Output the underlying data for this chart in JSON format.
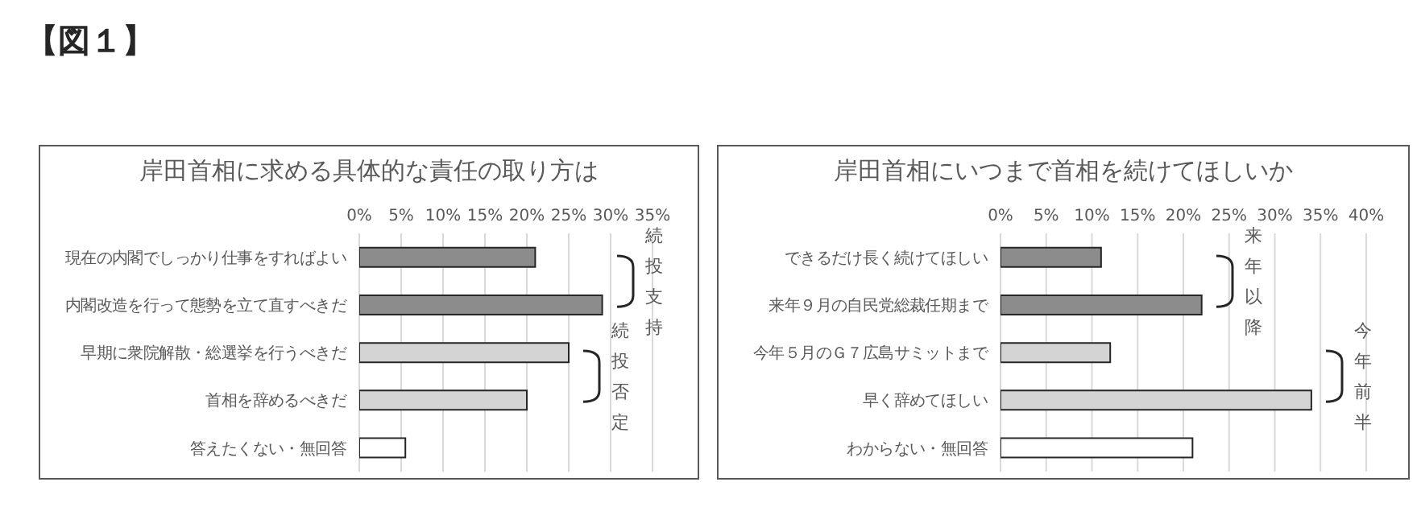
{
  "chart_data": [
    {
      "type": "other",
      "title": "【図１】"
    },
    {
      "type": "bar",
      "orientation": "horizontal",
      "title": "岸田首相に求める具体的な責任の取り方は",
      "categories": [
        "現在の内閣でしっかり仕事をすればよい",
        "内閣改造を行って態勢を立て直すべきだ",
        "早期に衆院解散・総選挙を行うべきだ",
        "首相を辞めるべきだ",
        "答えたくない・無回答"
      ],
      "values": [
        21,
        29,
        25,
        20,
        5.5
      ],
      "colors": [
        "#8c8c8c",
        "#8c8c8c",
        "#d4d4d4",
        "#d4d4d4",
        "#ffffff"
      ],
      "xlim": [
        0,
        35
      ],
      "xticks": [
        {
          "value": 0,
          "label": "0%"
        },
        {
          "value": 5,
          "label": "5%"
        },
        {
          "value": 10,
          "label": "10%"
        },
        {
          "value": 15,
          "label": "15%"
        },
        {
          "value": 20,
          "label": "20%"
        },
        {
          "value": 25,
          "label": "25%"
        },
        {
          "value": 30,
          "label": "30%"
        },
        {
          "value": 35,
          "label": "35%"
        }
      ],
      "grid": "x",
      "annotations": [
        "続投支持",
        "続投否定"
      ]
    },
    {
      "type": "bar",
      "orientation": "horizontal",
      "title": "岸田首相にいつまで首相を続けてほしいか",
      "categories": [
        "できるだけ長く続けてほしい",
        "来年９月の自民党総裁任期まで",
        "今年５月のＧ７広島サミットまで",
        "早く辞めてほしい",
        "わからない・無回答"
      ],
      "values": [
        11,
        22,
        12,
        34,
        21
      ],
      "colors": [
        "#8c8c8c",
        "#8c8c8c",
        "#d4d4d4",
        "#d4d4d4",
        "#ffffff"
      ],
      "xlim": [
        0,
        40
      ],
      "xticks": [
        {
          "value": 0,
          "label": "0%"
        },
        {
          "value": 5,
          "label": "5%"
        },
        {
          "value": 10,
          "label": "10%"
        },
        {
          "value": 15,
          "label": "15%"
        },
        {
          "value": 20,
          "label": "20%"
        },
        {
          "value": 25,
          "label": "25%"
        },
        {
          "value": 30,
          "label": "30%"
        },
        {
          "value": 35,
          "label": "35%"
        },
        {
          "value": 40,
          "label": "40%"
        }
      ],
      "grid": "x",
      "annotations": [
        "来年以降",
        "今年前半"
      ]
    }
  ]
}
